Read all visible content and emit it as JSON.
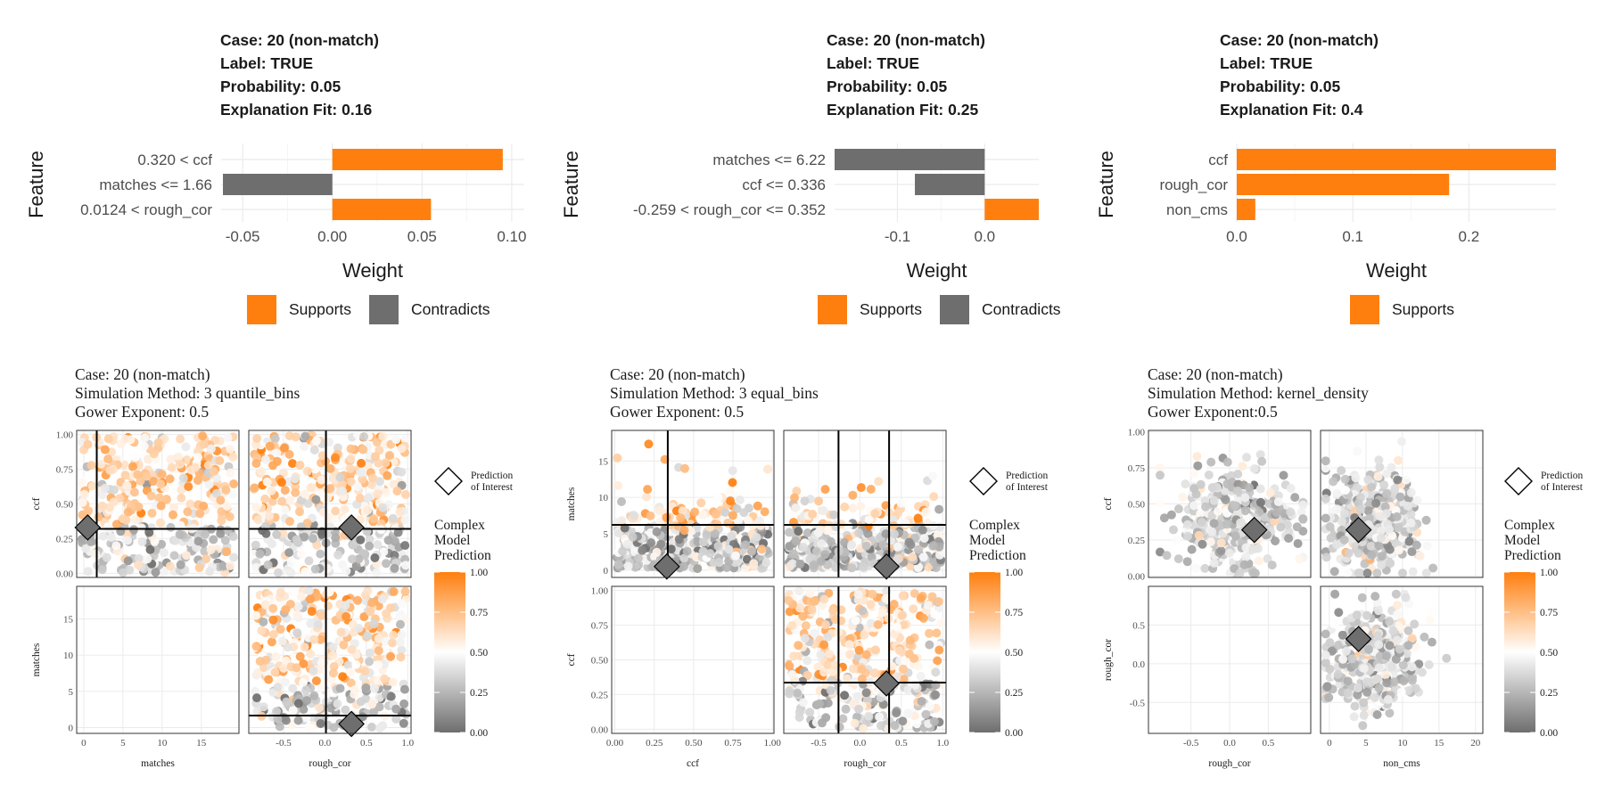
{
  "colors": {
    "supports": "#FF7F0E",
    "contradicts": "#6E6E6E",
    "grid": "#EBEBEB"
  },
  "bar_panels": [
    {
      "title_lines": [
        "Case: 20 (non-match)",
        "Label: TRUE",
        "Probability: 0.05",
        "Explanation Fit: 0.16"
      ],
      "legend": [
        "Supports",
        "Contradicts"
      ]
    },
    {
      "title_lines": [
        "Case: 20 (non-match)",
        "Label: TRUE",
        "Probability: 0.05",
        "Explanation Fit: 0.25"
      ],
      "legend": [
        "Supports",
        "Contradicts"
      ]
    },
    {
      "title_lines": [
        "Case: 20 (non-match)",
        "Label: TRUE",
        "Probability: 0.05",
        "Explanation Fit: 0.4"
      ],
      "legend": [
        "Supports"
      ]
    }
  ],
  "pair_panels": [
    {
      "title_lines": [
        "Case: 20 (non-match)",
        "Simulation Method: 3 quantile_bins",
        "Gower Exponent: 0.5"
      ]
    },
    {
      "title_lines": [
        "Case: 20 (non-match)",
        "Simulation Method: 3 equal_bins",
        "Gower Exponent: 0.5"
      ]
    },
    {
      "title_lines": [
        "Case: 20 (non-match)",
        "Simulation Method: kernel_density",
        "Gower Exponent:0.5"
      ]
    }
  ],
  "pair_legend": {
    "shape_label": "Prediction\nof Interest",
    "color_title": "Complex\nModel\nPrediction",
    "color_ticks": [
      "1.00",
      "0.75",
      "0.50",
      "0.25",
      "0.00"
    ]
  },
  "chart_data": [
    {
      "type": "bar",
      "orientation": "horizontal",
      "xlabel": "Weight",
      "ylabel": "Feature",
      "categories": [
        "0.320 < ccf",
        "matches <= 1.66",
        "0.0124 < rough_cor"
      ],
      "values": [
        0.095,
        -0.061,
        0.055
      ],
      "support": [
        "Supports",
        "Contradicts",
        "Supports"
      ],
      "xlim": [
        -0.062,
        0.107
      ],
      "xticks": [
        -0.05,
        0.0,
        0.05,
        0.1
      ],
      "xtick_labels": [
        "-0.05",
        "0.00",
        "0.05",
        "0.10"
      ],
      "legend_position": "bottom"
    },
    {
      "type": "bar",
      "orientation": "horizontal",
      "xlabel": "Weight",
      "ylabel": "Feature",
      "categories": [
        "matches <= 6.22",
        "ccf <= 0.336",
        "-0.259 < rough_cor <= 0.352"
      ],
      "values": [
        -0.172,
        -0.08,
        0.062
      ],
      "support": [
        "Contradicts",
        "Contradicts",
        "Supports"
      ],
      "xlim": [
        -0.172,
        0.062
      ],
      "xticks": [
        -0.1,
        0.0
      ],
      "xtick_labels": [
        "-0.1",
        "0.0"
      ],
      "legend_position": "bottom"
    },
    {
      "type": "bar",
      "orientation": "horizontal",
      "xlabel": "Weight",
      "ylabel": "Feature",
      "categories": [
        "ccf",
        "rough_cor",
        "non_cms"
      ],
      "values": [
        0.275,
        0.183,
        0.016
      ],
      "support": [
        "Supports",
        "Supports",
        "Supports"
      ],
      "xlim": [
        0.0,
        0.275
      ],
      "xticks": [
        0.0,
        0.1,
        0.2
      ],
      "xtick_labels": [
        "0.0",
        "0.1",
        "0.2"
      ],
      "legend_position": "bottom"
    },
    {
      "type": "scatter",
      "layout": "scatterplot matrix",
      "variables": [
        "ccf",
        "matches",
        "rough_cor"
      ],
      "col_vars": [
        "matches",
        "rough_cor"
      ],
      "row_vars": [
        "ccf",
        "matches"
      ],
      "col_ranges": [
        [
          -0.9,
          19.8
        ],
        [
          -0.92,
          1.04
        ]
      ],
      "row_ranges": [
        [
          -0.03,
          1.03
        ],
        [
          -0.8,
          19.5
        ]
      ],
      "col_ticks": [
        [
          "0",
          "5",
          "10",
          "15"
        ],
        [
          "-0.5",
          "0.0",
          "0.5",
          "1.0"
        ]
      ],
      "row_ticks": [
        [
          "0.00",
          "0.25",
          "0.50",
          "0.75",
          "1.00"
        ],
        [
          "0",
          "5",
          "10",
          "15"
        ]
      ],
      "prediction_of_interest": {
        "ccf": 0.33,
        "matches": 0.5,
        "rough_cor": 0.32
      },
      "bin_cutoffs": {
        "matches": [
          1.66
        ],
        "ccf": [
          0.32
        ],
        "rough_cor": [
          0.0124
        ]
      },
      "color_scale": {
        "low": "#6E6E6E",
        "mid": "#FFFFFF",
        "high": "#FF7F0E",
        "limits": [
          0,
          1
        ]
      }
    },
    {
      "type": "scatter",
      "layout": "scatterplot matrix",
      "variables": [
        "matches",
        "ccf",
        "rough_cor"
      ],
      "col_vars": [
        "ccf",
        "rough_cor"
      ],
      "row_vars": [
        "matches",
        "ccf"
      ],
      "col_ranges": [
        [
          -0.02,
          1.01
        ],
        [
          -0.92,
          1.04
        ]
      ],
      "row_ranges": [
        [
          -1,
          19.2
        ],
        [
          -0.03,
          1.03
        ]
      ],
      "col_ticks": [
        [
          "0.00",
          "0.25",
          "0.50",
          "0.75",
          "1.00"
        ],
        [
          "-0.5",
          "0.0",
          "0.5",
          "1.0"
        ]
      ],
      "row_ticks": [
        [
          "0",
          "5",
          "10",
          "15"
        ],
        [
          "0.00",
          "0.25",
          "0.50",
          "0.75",
          "1.00"
        ]
      ],
      "prediction_of_interest": {
        "matches": 0.5,
        "ccf": 0.33,
        "rough_cor": 0.32
      },
      "bin_cutoffs": {
        "matches": [
          6.22
        ],
        "ccf": [
          0.336
        ],
        "rough_cor": [
          -0.259,
          0.352
        ]
      },
      "color_scale": {
        "low": "#6E6E6E",
        "mid": "#FFFFFF",
        "high": "#FF7F0E",
        "limits": [
          0,
          1
        ]
      }
    },
    {
      "type": "scatter",
      "layout": "scatterplot matrix",
      "variables": [
        "ccf",
        "rough_cor",
        "non_cms"
      ],
      "col_vars": [
        "rough_cor",
        "non_cms"
      ],
      "row_vars": [
        "ccf",
        "rough_cor"
      ],
      "col_ranges": [
        [
          -1.05,
          1.05
        ],
        [
          -1.2,
          21
        ]
      ],
      "row_ranges": [
        [
          -0.01,
          1.01
        ],
        [
          -0.9,
          1.0
        ]
      ],
      "col_ticks": [
        [
          "-0.5",
          "0.0",
          "0.5"
        ],
        [
          "0",
          "5",
          "10",
          "15",
          "20"
        ]
      ],
      "row_ticks": [
        [
          "0.00",
          "0.25",
          "0.50",
          "0.75",
          "1.00"
        ],
        [
          "-0.5",
          "0.0",
          "0.5"
        ]
      ],
      "prediction_of_interest": {
        "ccf": 0.32,
        "rough_cor": 0.32,
        "non_cms": 4
      },
      "bin_cutoffs": {},
      "color_scale": {
        "low": "#6E6E6E",
        "mid": "#FFFFFF",
        "high": "#FF7F0E",
        "limits": [
          0,
          1
        ]
      }
    }
  ]
}
